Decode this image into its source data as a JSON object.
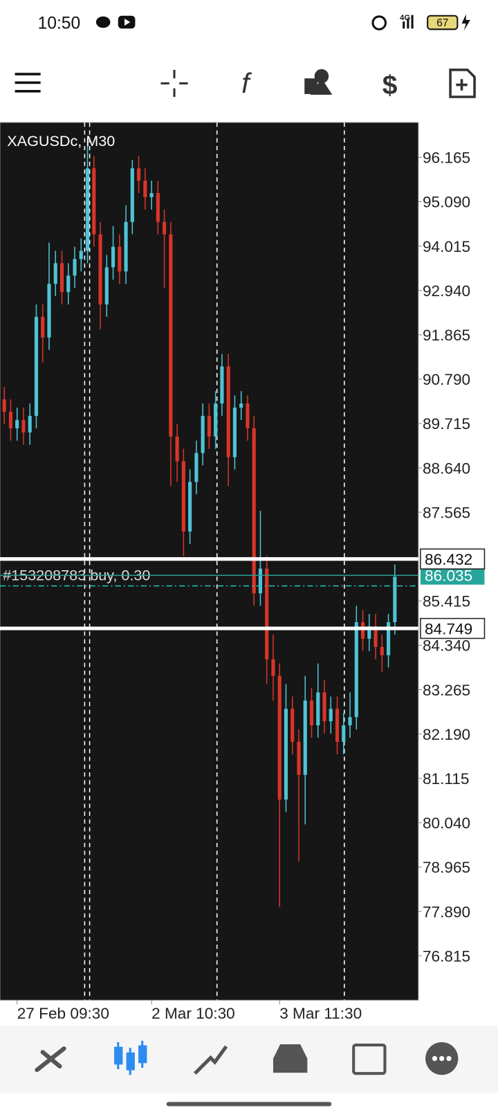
{
  "status_bar": {
    "time": "10:50",
    "network": "4G",
    "battery": "67"
  },
  "chart_data": {
    "type": "candlestick",
    "title": "XAGUSDc, M30",
    "open": [
      90.3,
      90.0,
      89.6,
      89.8,
      89.5,
      89.9,
      92.3,
      91.8,
      93.1,
      93.6,
      92.9,
      93.3,
      93.7,
      93.9,
      95.9,
      94.3,
      92.6,
      93.5,
      94.0,
      93.4,
      94.6,
      95.9,
      95.6,
      95.2,
      95.3,
      94.6,
      94.3,
      89.4,
      88.8,
      87.1,
      88.3,
      89.0,
      89.9,
      89.4,
      90.2,
      91.1,
      88.9,
      90.1,
      90.2,
      89.6,
      85.6,
      86.2,
      84.0,
      83.6,
      80.6,
      82.8,
      82.0,
      81.2,
      83.0,
      82.4,
      83.2,
      82.5,
      82.8,
      82.0,
      82.4,
      82.6,
      84.9,
      84.5,
      84.8,
      84.3,
      84.1,
      84.9
    ],
    "high": [
      90.6,
      90.3,
      90.1,
      90.1,
      90.2,
      92.6,
      92.6,
      94.1,
      93.9,
      93.9,
      93.6,
      94.0,
      94.2,
      96.6,
      96.2,
      94.6,
      93.8,
      94.5,
      94.3,
      95.0,
      96.1,
      96.2,
      95.9,
      95.6,
      95.6,
      94.9,
      94.6,
      89.7,
      89.1,
      88.6,
      89.3,
      90.2,
      90.2,
      90.5,
      91.4,
      91.4,
      90.4,
      90.5,
      90.4,
      89.9,
      87.6,
      86.5,
      84.6,
      83.9,
      83.4,
      83.1,
      82.3,
      83.6,
      83.3,
      83.9,
      83.5,
      83.1,
      83.1,
      82.7,
      83.2,
      85.3,
      85.2,
      85.1,
      85.1,
      84.6,
      85.1,
      86.3
    ],
    "low": [
      89.7,
      89.3,
      89.3,
      89.2,
      89.2,
      89.6,
      91.2,
      91.5,
      92.8,
      92.6,
      92.6,
      93.0,
      93.4,
      93.6,
      94.0,
      92.0,
      92.3,
      93.2,
      93.1,
      93.1,
      94.3,
      95.3,
      94.9,
      94.9,
      94.3,
      93.0,
      88.2,
      88.3,
      86.5,
      86.8,
      88.0,
      88.7,
      89.1,
      89.1,
      89.9,
      88.2,
      88.6,
      89.8,
      89.3,
      85.3,
      85.3,
      83.4,
      83.0,
      78.0,
      80.3,
      81.7,
      79.1,
      80.0,
      82.1,
      82.1,
      82.2,
      82.2,
      81.7,
      81.7,
      82.1,
      82.3,
      84.2,
      84.2,
      84.0,
      83.7,
      83.8,
      84.6
    ],
    "close": [
      90.0,
      89.6,
      89.8,
      89.5,
      89.9,
      92.3,
      91.8,
      93.1,
      93.6,
      92.9,
      93.3,
      93.7,
      93.9,
      95.9,
      94.3,
      92.6,
      93.5,
      94.0,
      93.4,
      94.6,
      95.9,
      95.6,
      95.2,
      95.3,
      94.6,
      94.3,
      89.4,
      88.8,
      87.1,
      88.3,
      89.0,
      89.9,
      89.4,
      90.2,
      91.1,
      88.9,
      90.1,
      90.2,
      89.6,
      85.6,
      86.2,
      84.0,
      83.6,
      80.6,
      82.8,
      82.0,
      81.2,
      83.0,
      82.4,
      83.2,
      82.5,
      82.8,
      82.0,
      82.4,
      82.6,
      84.9,
      84.5,
      84.8,
      84.3,
      84.1,
      84.9,
      86.0
    ],
    "up_color": "#4fc3d5",
    "down_color": "#d8352a",
    "xlim": [
      -0.67,
      64.67
    ],
    "xticks": [
      {
        "value": 2,
        "label": "27 Feb 09:30"
      },
      {
        "value": 23,
        "label": "2 Mar 10:30"
      },
      {
        "value": 43,
        "label": "3 Mar 11:30"
      }
    ],
    "ylim": [
      75.74,
      97.01
    ],
    "yticks": [
      96.165,
      {
        "value": 95.09,
        "label": "95.090"
      },
      94.015,
      {
        "value": 92.94,
        "label": "92.940"
      },
      91.865,
      {
        "value": 90.79,
        "label": "90.790"
      },
      89.715,
      {
        "value": 88.64,
        "label": "88.640"
      },
      87.565,
      85.415,
      {
        "value": 84.34,
        "label": "84.340"
      },
      83.265,
      {
        "value": 82.19,
        "label": "82.190"
      },
      81.115,
      {
        "value": 80.04,
        "label": "80.040"
      },
      78.965,
      {
        "value": 77.89,
        "label": "77.890"
      },
      76.815
    ],
    "levels": [
      {
        "value": 86.432,
        "color": "#ffffff"
      },
      {
        "value": 84.749,
        "color": "#ffffff"
      }
    ],
    "bid": {
      "value": 86.035,
      "color": "#26a69a"
    },
    "order": {
      "label": "#153208783 buy, 0.30",
      "value": 85.78,
      "color": "#26c6c6"
    }
  }
}
